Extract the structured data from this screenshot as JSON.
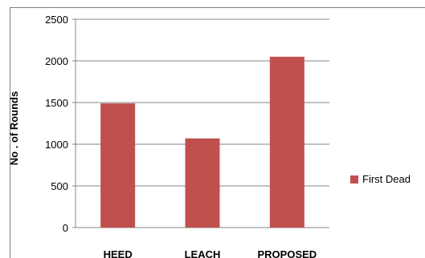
{
  "chart_data": {
    "type": "bar",
    "categories": [
      "HEED",
      "LEACH",
      "PROPOSED"
    ],
    "series": [
      {
        "name": "First Dead",
        "values": [
          1490,
          1070,
          2050
        ]
      }
    ],
    "title": "",
    "xlabel": "",
    "ylabel": "No . of Rounds",
    "ylim": [
      0,
      2500
    ],
    "yticks": [
      0,
      500,
      1000,
      1500,
      2000,
      2500
    ],
    "grid": true,
    "legend": "right",
    "colors": {
      "bar": "#C0504D",
      "grid": "#868686",
      "axis": "#868686"
    }
  }
}
